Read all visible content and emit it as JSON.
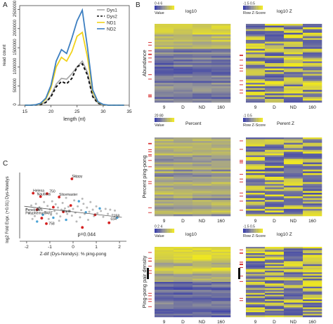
{
  "panels": {
    "A": "A",
    "B": "B",
    "C": "C"
  },
  "chart_data": [
    {
      "id": "A",
      "type": "line",
      "xlabel": "length (nt)",
      "ylabel": "read count",
      "xlim": [
        14,
        35
      ],
      "ylim": [
        0,
        2600000
      ],
      "xticks": [
        15,
        20,
        25,
        30,
        35
      ],
      "yticks": [
        0,
        500000,
        1000000,
        1500000,
        2000000,
        2500000
      ],
      "ytick_labels": [
        "0",
        "500000",
        "1000000",
        "1500000",
        "2000000",
        "2500000"
      ],
      "legend": "top-right",
      "x": [
        15,
        16,
        17,
        18,
        19,
        20,
        21,
        22,
        23,
        24,
        25,
        26,
        27,
        28,
        29,
        30,
        31,
        32,
        33,
        34
      ],
      "series": [
        {
          "name": "Dys1",
          "color": "#aaaaaa",
          "dash": "",
          "values": [
            0,
            0,
            5000,
            20000,
            80000,
            250000,
            550000,
            700000,
            680000,
            820000,
            1000000,
            1150000,
            850000,
            250000,
            60000,
            10000,
            0,
            0,
            0,
            0
          ]
        },
        {
          "name": "Dys2",
          "color": "#111111",
          "dash": "4,3",
          "values": [
            0,
            0,
            5000,
            20000,
            70000,
            220000,
            480000,
            620000,
            560000,
            700000,
            1000000,
            1080000,
            780000,
            220000,
            50000,
            10000,
            0,
            0,
            0,
            0
          ]
        },
        {
          "name": "ND1",
          "color": "#f1d21a",
          "dash": "",
          "values": [
            0,
            0,
            10000,
            40000,
            150000,
            450000,
            1000000,
            1250000,
            1150000,
            1400000,
            1800000,
            1900000,
            1250000,
            350000,
            80000,
            15000,
            0,
            0,
            0,
            0
          ]
        },
        {
          "name": "ND2",
          "color": "#3d7fc1",
          "dash": "",
          "values": [
            0,
            0,
            10000,
            50000,
            180000,
            520000,
            1150000,
            1450000,
            1350000,
            1750000,
            2200000,
            2480000,
            1500000,
            400000,
            90000,
            20000,
            0,
            0,
            0,
            0
          ]
        }
      ]
    },
    {
      "id": "C",
      "type": "scatter",
      "xlabel": "Z-dif (Dys-Nondys): % ping-pong",
      "ylabel": "log2 Fold Expr. (+0.01) Dys-Nondys",
      "xlim": [
        -2.3,
        2.3
      ],
      "ylim": [
        -3.2,
        4.6
      ],
      "xticks": [
        -2,
        -1,
        0,
        1,
        2
      ],
      "annotation": "p=0.044",
      "labels": [
        {
          "text": "Skippy",
          "x": -0.05,
          "y": 4.0
        },
        {
          "text": "Helena",
          "x": -1.72,
          "y": 2.3
        },
        {
          "text": "750",
          "x": -1.02,
          "y": 2.22
        },
        {
          "text": "Nauticus",
          "x": -1.55,
          "y": 1.9
        },
        {
          "text": "Slicemaster",
          "x": -0.6,
          "y": 1.85
        },
        {
          "text": "Penelope",
          "x": -2.05,
          "y": 0.05
        },
        {
          "text": "NY",
          "x": -1.55,
          "y": 0.1
        },
        {
          "text": "Polyphemus",
          "x": -2.05,
          "y": -0.35
        },
        {
          "text": "TART",
          "x": -1.25,
          "y": -0.35
        },
        {
          "text": "Paris",
          "x": -0.45,
          "y": -0.15
        },
        {
          "text": "258",
          "x": 1.75,
          "y": -0.65
        },
        {
          "text": "034",
          "x": 1.62,
          "y": -1.05
        },
        {
          "text": "758",
          "x": -1.05,
          "y": -1.6
        }
      ],
      "trend_line": {
        "x": [
          -2.1,
          2.1
        ],
        "y": [
          0.6,
          -0.7
        ]
      },
      "points_red": [
        {
          "x": -1.72,
          "y": 2.15
        },
        {
          "x": -1.12,
          "y": 2.1
        },
        {
          "x": -1.4,
          "y": 1.75
        },
        {
          "x": -0.6,
          "y": 1.7
        },
        {
          "x": -0.05,
          "y": 3.85
        },
        {
          "x": -1.55,
          "y": 0.2
        },
        {
          "x": -0.42,
          "y": -0.05
        },
        {
          "x": -1.15,
          "y": -1.45
        },
        {
          "x": -0.85,
          "y": 0.5
        },
        {
          "x": -0.1,
          "y": 0.7
        },
        {
          "x": 0.95,
          "y": -0.4
        },
        {
          "x": 1.55,
          "y": -1.35
        },
        {
          "x": 0.4,
          "y": -1.9
        },
        {
          "x": -1.35,
          "y": -0.8
        }
      ],
      "points_blue": [
        {
          "x": -1.3,
          "y": -0.4
        },
        {
          "x": -0.85,
          "y": -0.75
        },
        {
          "x": 0.55,
          "y": -0.1
        },
        {
          "x": 1.15,
          "y": 0.35
        },
        {
          "x": 0.25,
          "y": 1.2
        },
        {
          "x": -0.3,
          "y": -1.0
        },
        {
          "x": 1.9,
          "y": -0.75
        },
        {
          "x": -1.55,
          "y": -1.2
        }
      ],
      "points_grey": [
        {
          "x": -2.0,
          "y": 0.3
        },
        {
          "x": -1.9,
          "y": -0.2
        },
        {
          "x": -1.8,
          "y": 0.7
        },
        {
          "x": -1.65,
          "y": -0.55
        },
        {
          "x": -1.6,
          "y": 0.9
        },
        {
          "x": -1.45,
          "y": 0.5
        },
        {
          "x": -1.35,
          "y": 0.15
        },
        {
          "x": -1.25,
          "y": 1.1
        },
        {
          "x": -1.2,
          "y": -0.1
        },
        {
          "x": -1.1,
          "y": 0.65
        },
        {
          "x": -1.0,
          "y": 0.25
        },
        {
          "x": -0.95,
          "y": -0.4
        },
        {
          "x": -0.9,
          "y": 1.2
        },
        {
          "x": -0.8,
          "y": 0.05
        },
        {
          "x": -0.75,
          "y": 0.85
        },
        {
          "x": -0.7,
          "y": -0.25
        },
        {
          "x": -0.65,
          "y": 0.45
        },
        {
          "x": -0.55,
          "y": -0.6
        },
        {
          "x": -0.5,
          "y": 0.2
        },
        {
          "x": -0.45,
          "y": 1.0
        },
        {
          "x": -0.35,
          "y": 0.35
        },
        {
          "x": -0.25,
          "y": -0.3
        },
        {
          "x": -0.2,
          "y": 0.55
        },
        {
          "x": -0.15,
          "y": 0.1
        },
        {
          "x": -0.05,
          "y": -0.5
        },
        {
          "x": 0.0,
          "y": 0.3
        },
        {
          "x": 0.05,
          "y": 1.3
        },
        {
          "x": 0.1,
          "y": -0.15
        },
        {
          "x": 0.2,
          "y": 0.6
        },
        {
          "x": 0.3,
          "y": -0.7
        },
        {
          "x": 0.35,
          "y": 0.15
        },
        {
          "x": 0.45,
          "y": 0.9
        },
        {
          "x": 0.5,
          "y": -0.3
        },
        {
          "x": 0.6,
          "y": 0.45
        },
        {
          "x": 0.7,
          "y": -0.05
        },
        {
          "x": 0.75,
          "y": 1.1
        },
        {
          "x": 0.85,
          "y": 0.2
        },
        {
          "x": 0.9,
          "y": -0.55
        },
        {
          "x": 1.0,
          "y": 0.6
        },
        {
          "x": 1.05,
          "y": -0.2
        },
        {
          "x": 1.2,
          "y": 0.05
        },
        {
          "x": 1.3,
          "y": -0.65
        },
        {
          "x": 1.4,
          "y": 0.3
        },
        {
          "x": 1.5,
          "y": -0.3
        },
        {
          "x": 1.6,
          "y": 0.2
        },
        {
          "x": 1.7,
          "y": -0.4
        },
        {
          "x": 1.8,
          "y": 0.1
        },
        {
          "x": -1.75,
          "y": -0.9
        },
        {
          "x": -1.05,
          "y": -0.9
        },
        {
          "x": -0.6,
          "y": -1.1
        },
        {
          "x": 0.15,
          "y": -1.2
        },
        {
          "x": 0.65,
          "y": -1.0
        },
        {
          "x": -0.3,
          "y": 1.6
        },
        {
          "x": 0.4,
          "y": 1.5
        }
      ]
    },
    {
      "id": "B",
      "type": "heatmap",
      "rows": [
        {
          "label": "Abundance",
          "left": {
            "title": "log10",
            "key_title": "Value",
            "key_ticks": [
              "0",
              "4",
              "6"
            ]
          },
          "right": {
            "title": "log10 Z",
            "key_title": "Row Z-Score",
            "key_ticks": [
              "-1.5",
              "0.5"
            ]
          }
        },
        {
          "label": "Percent ping-pong",
          "left": {
            "title": "Percent",
            "key_title": "Value",
            "key_ticks": [
              "20",
              "80"
            ]
          },
          "right": {
            "title": "Perent Z",
            "key_title": "Row Z-Score",
            "key_ticks": [
              "-1",
              "0.5"
            ]
          }
        },
        {
          "label": "Ping-pong pair density",
          "left": {
            "title": "log10",
            "key_title": "Value",
            "key_ticks": [
              "0",
              "2",
              "4"
            ]
          },
          "right": {
            "title": "log10 Z",
            "key_title": "Row Z-Score",
            "key_ticks": [
              "-1.5",
              "0.5"
            ]
          }
        }
      ],
      "columns": [
        "9",
        "D",
        "ND",
        "160"
      ]
    }
  ]
}
